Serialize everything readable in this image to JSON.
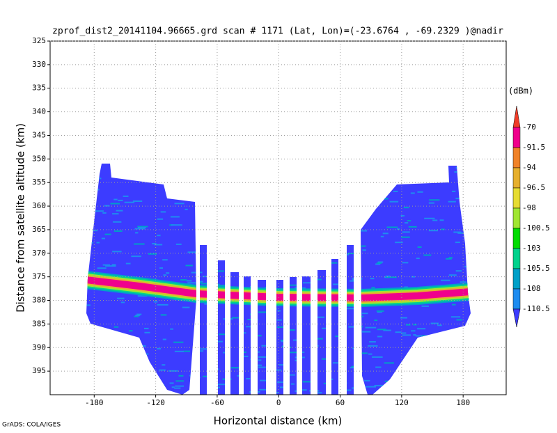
{
  "chart_data": {
    "type": "heatmap",
    "title": "zprof_dist2_20141104.96665.grd  scan # 1171  (Lat, Lon)=(-23.6764 , -69.2329 )@nadir",
    "xlabel": "Horizontal distance (km)",
    "ylabel": "Distance from satellite altitude (km)",
    "xlim": [
      -223,
      222
    ],
    "ylim": [
      325,
      400
    ],
    "xticks": [
      -180,
      -120,
      -60,
      0,
      60,
      120,
      180
    ],
    "yticks": [
      325,
      330,
      335,
      340,
      345,
      350,
      355,
      360,
      365,
      370,
      375,
      380,
      385,
      390,
      395
    ],
    "grid": true,
    "colorbar": {
      "unit": "(dBm)",
      "levels": [
        -70,
        -91.5,
        -94,
        -96.5,
        -98,
        -100.5,
        -103,
        -105.5,
        -108,
        -110.5
      ],
      "colors": [
        "#f03c28",
        "#f0008c",
        "#f08228",
        "#e6af2d",
        "#e6dc32",
        "#a0e632",
        "#00dc00",
        "#00d28c",
        "#00a0c8",
        "#1e8cf0",
        "#3c3cff"
      ]
    },
    "footer": "GrADS: COLA/IGES"
  }
}
